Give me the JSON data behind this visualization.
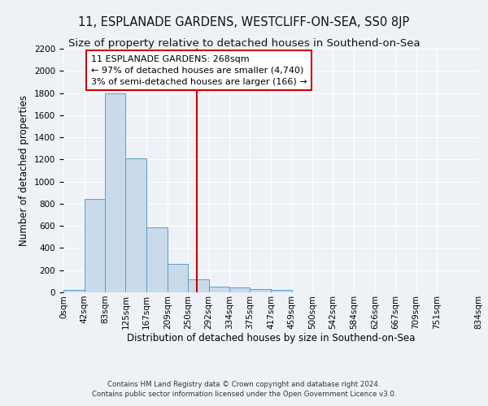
{
  "title": "11, ESPLANADE GARDENS, WESTCLIFF-ON-SEA, SS0 8JP",
  "subtitle": "Size of property relative to detached houses in Southend-on-Sea",
  "xlabel": "Distribution of detached houses by size in Southend-on-Sea",
  "ylabel": "Number of detached properties",
  "footer_line1": "Contains HM Land Registry data © Crown copyright and database right 2024.",
  "footer_line2": "Contains public sector information licensed under the Open Government Licence v3.0.",
  "annotation_line1": "11 ESPLANADE GARDENS: 268sqm",
  "annotation_line2": "← 97% of detached houses are smaller (4,740)",
  "annotation_line3": "3% of semi-detached houses are larger (166) →",
  "bar_values": [
    25,
    840,
    1800,
    1210,
    585,
    260,
    115,
    50,
    45,
    30,
    20,
    0,
    0,
    0,
    0,
    0,
    0,
    0,
    0
  ],
  "bar_color": "#c9daea",
  "bar_edge_color": "#5a9ec8",
  "bin_edges": [
    0,
    42,
    83,
    125,
    167,
    209,
    250,
    292,
    334,
    375,
    417,
    459,
    500,
    542,
    584,
    626,
    667,
    709,
    751,
    834
  ],
  "tick_labels": [
    "0sqm",
    "42sqm",
    "83sqm",
    "125sqm",
    "167sqm",
    "209sqm",
    "250sqm",
    "292sqm",
    "334sqm",
    "375sqm",
    "417sqm",
    "459sqm",
    "500sqm",
    "542sqm",
    "584sqm",
    "626sqm",
    "667sqm",
    "709sqm",
    "751sqm",
    "834sqm"
  ],
  "ylim": [
    0,
    2200
  ],
  "yticks": [
    0,
    200,
    400,
    600,
    800,
    1000,
    1200,
    1400,
    1600,
    1800,
    2000,
    2200
  ],
  "property_size": 268,
  "vline_color": "#cc0000",
  "annotation_box_edge_color": "#cc0000",
  "background_color": "#eef2f7",
  "grid_color": "#ffffff",
  "title_fontsize": 10.5,
  "subtitle_fontsize": 9.5,
  "axis_label_fontsize": 8.5,
  "tick_fontsize": 7.5,
  "annotation_fontsize": 8,
  "footer_fontsize": 6.2
}
